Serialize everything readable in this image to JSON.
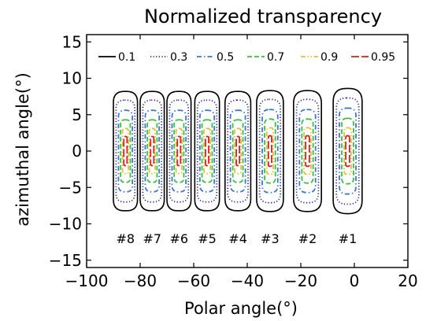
{
  "chart_data": {
    "type": "line",
    "title": "Normalized transparency",
    "xlabel": "Polar angle(°)",
    "ylabel": "azimuthal angle(°)",
    "xlim": [
      -100,
      20
    ],
    "ylim": [
      -16,
      16
    ],
    "xticks": [
      -100,
      -80,
      -60,
      -40,
      -20,
      0,
      20
    ],
    "yticks": [
      -15,
      -10,
      -5,
      0,
      5,
      10,
      15
    ],
    "xtick_labels": [
      "−100",
      "−80",
      "−60",
      "−40",
      "−20",
      "0",
      "20"
    ],
    "ytick_labels": [
      "−15",
      "−10",
      "−5",
      "0",
      "5",
      "10",
      "15"
    ],
    "grid": false,
    "legend_position": "top",
    "series": [
      {
        "name": "0.1",
        "color": "#000000",
        "dash": "solid"
      },
      {
        "name": "0.3",
        "color": "#2a2a9a",
        "dash": "dotted"
      },
      {
        "name": "0.5",
        "color": "#3a78c8",
        "dash": "dashdot"
      },
      {
        "name": "0.7",
        "color": "#3cbf3c",
        "dash": "dashed"
      },
      {
        "name": "0.9",
        "color": "#d8c43a",
        "dash": "dashdotdot"
      },
      {
        "name": "0.95",
        "color": "#d42020",
        "dash": "longdash"
      }
    ],
    "apertures": [
      {
        "label": "#8",
        "x_center": -85.5,
        "half_widths": [
          4.5,
          3.5,
          2.6,
          1.8,
          1.1,
          0.6
        ],
        "half_heights": [
          8.2,
          7.0,
          5.6,
          4.3,
          3.1,
          2.0
        ]
      },
      {
        "label": "#7",
        "x_center": -75.5,
        "half_widths": [
          4.5,
          3.5,
          2.6,
          1.8,
          1.1,
          0.6
        ],
        "half_heights": [
          8.2,
          7.0,
          5.6,
          4.3,
          3.1,
          2.0
        ]
      },
      {
        "label": "#6",
        "x_center": -65.5,
        "half_widths": [
          4.5,
          3.5,
          2.6,
          1.8,
          1.1,
          0.6
        ],
        "half_heights": [
          8.2,
          7.0,
          5.6,
          4.3,
          3.1,
          2.0
        ]
      },
      {
        "label": "#5",
        "x_center": -55.0,
        "half_widths": [
          4.6,
          3.6,
          2.7,
          1.9,
          1.2,
          0.6
        ],
        "half_heights": [
          8.2,
          7.0,
          5.6,
          4.3,
          3.1,
          2.0
        ]
      },
      {
        "label": "#4",
        "x_center": -43.5,
        "half_widths": [
          4.8,
          3.8,
          2.8,
          1.9,
          1.2,
          0.6
        ],
        "half_heights": [
          8.2,
          7.0,
          5.6,
          4.3,
          3.1,
          2.0
        ]
      },
      {
        "label": "#3",
        "x_center": -31.5,
        "half_widths": [
          5.0,
          3.9,
          2.9,
          2.0,
          1.2,
          0.6
        ],
        "half_heights": [
          8.3,
          7.1,
          5.7,
          4.4,
          3.2,
          2.1
        ]
      },
      {
        "label": "#2",
        "x_center": -17.5,
        "half_widths": [
          5.2,
          4.1,
          3.0,
          2.1,
          1.3,
          0.7
        ],
        "half_heights": [
          8.3,
          7.1,
          5.7,
          4.4,
          3.2,
          2.1
        ]
      },
      {
        "label": "#1",
        "x_center": -2.5,
        "half_widths": [
          5.4,
          4.2,
          3.1,
          2.2,
          1.3,
          0.7
        ],
        "half_heights": [
          8.6,
          7.3,
          5.9,
          4.5,
          3.2,
          2.1
        ]
      }
    ],
    "aperture_label_y": -12
  }
}
